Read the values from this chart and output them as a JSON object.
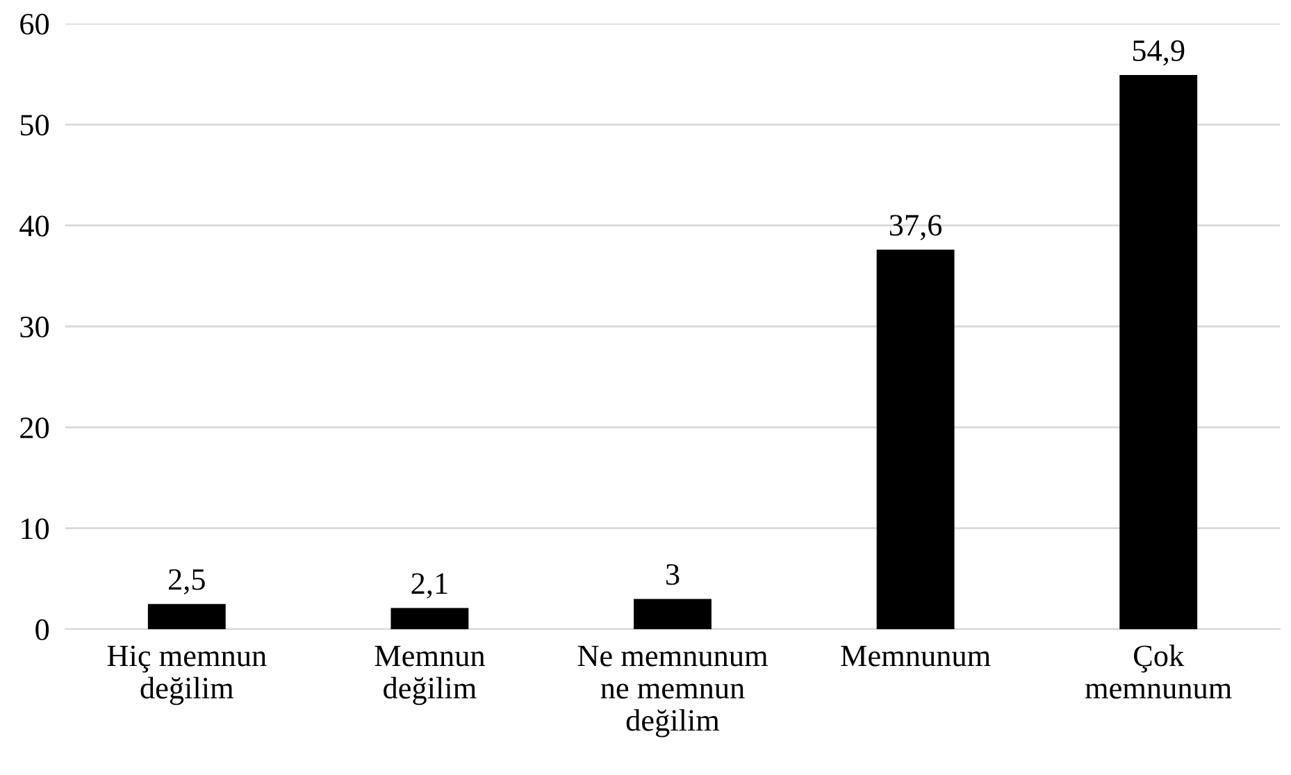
{
  "chart_data": {
    "type": "bar",
    "categories": [
      "Hiç memnun\ndeğilim",
      "Memnun\ndeğilim",
      "Ne memnunum\nne memnun\ndeğilim",
      "Memnunum",
      "Çok\nmemnunum"
    ],
    "values": [
      2.5,
      2.1,
      3,
      37.6,
      54.9
    ],
    "value_labels": [
      "2,5",
      "2,1",
      "3",
      "37,6",
      "54,9"
    ],
    "color": "#000000",
    "ylim": [
      0,
      60
    ],
    "yticks": [
      0,
      10,
      20,
      30,
      40,
      50,
      60
    ],
    "grid": "y"
  }
}
